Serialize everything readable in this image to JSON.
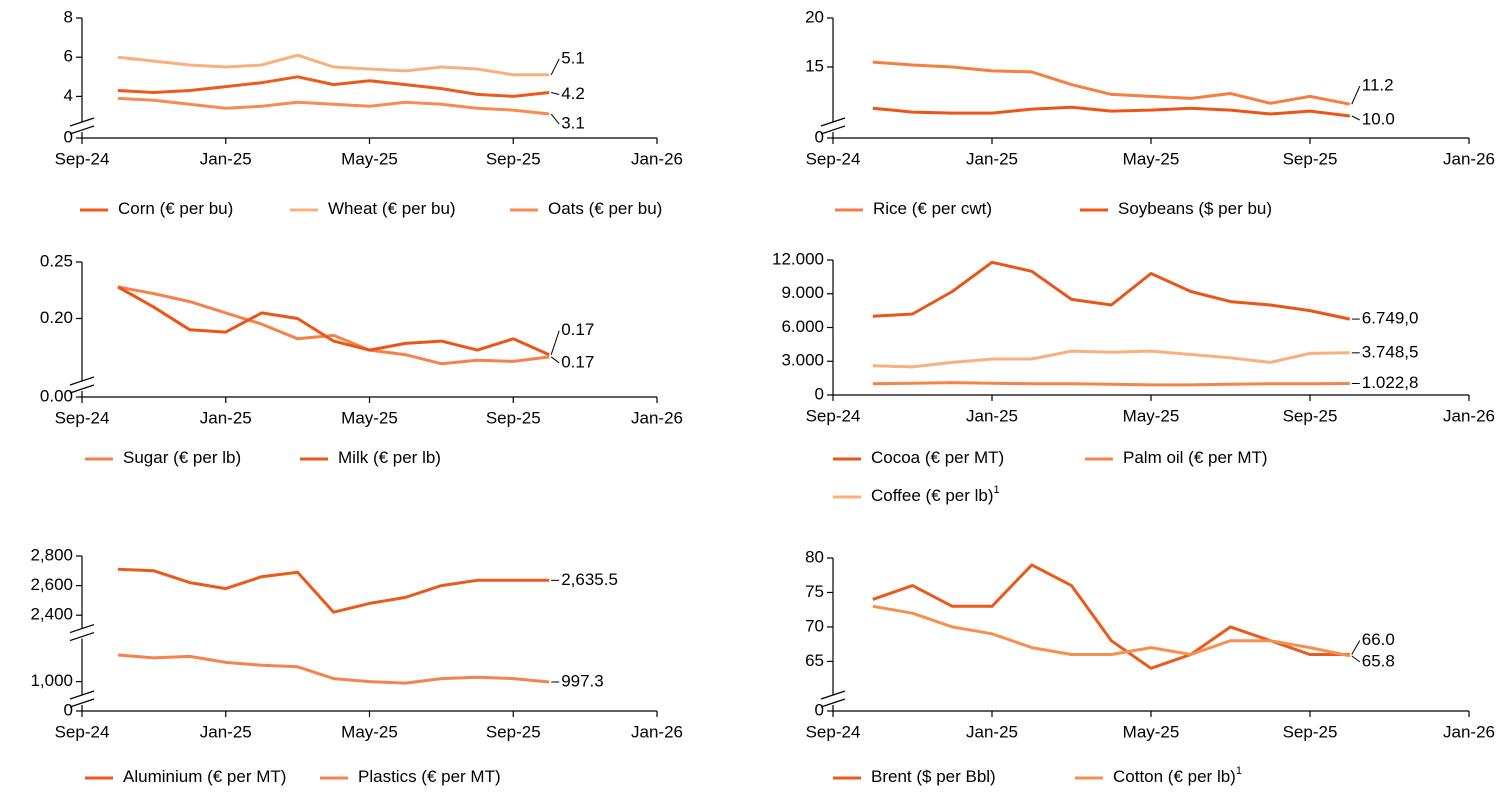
{
  "chart_data": [
    {
      "type": "line",
      "x": [
        "Oct-24",
        "Nov-24",
        "Dec-24",
        "Jan-25",
        "Feb-25",
        "Mar-25",
        "Apr-25",
        "May-25",
        "Jun-25",
        "Jul-25",
        "Aug-25",
        "Sep-25",
        "Oct-25"
      ],
      "xlim": [
        "Sep-24",
        "Jan-26"
      ],
      "xticks": [
        "Sep-24",
        "Jan-25",
        "May-25",
        "Sep-25",
        "Jan-26"
      ],
      "ylim": [
        0,
        8
      ],
      "yticks": [
        0,
        4,
        6,
        8
      ],
      "axis_breaks": [
        [
          0,
          3
        ]
      ],
      "series": [
        {
          "name": "Corn (€ per bu)",
          "color": "#ec5a1c",
          "values": [
            4.3,
            4.2,
            4.3,
            4.5,
            4.7,
            5.0,
            4.6,
            4.8,
            4.6,
            4.4,
            4.1,
            4.0,
            4.2
          ],
          "value_labels": [
            null,
            null,
            null,
            null,
            null,
            null,
            null,
            null,
            null,
            null,
            null,
            null,
            "4.2"
          ]
        },
        {
          "name": "Wheat (€ per bu)",
          "color": "#f8b07c",
          "values": [
            6.0,
            5.8,
            5.6,
            5.5,
            5.6,
            6.1,
            5.5,
            5.4,
            5.3,
            5.5,
            5.4,
            5.1,
            5.1
          ],
          "value_labels": [
            null,
            null,
            null,
            null,
            null,
            null,
            null,
            null,
            null,
            null,
            null,
            null,
            "5.1"
          ]
        },
        {
          "name": "Oats (€ per bu)",
          "color": "#f58c50",
          "values": [
            3.9,
            3.8,
            3.6,
            3.4,
            3.5,
            3.7,
            3.6,
            3.5,
            3.7,
            3.6,
            3.4,
            3.3,
            3.1
          ],
          "value_labels": [
            null,
            null,
            null,
            null,
            null,
            null,
            null,
            null,
            null,
            null,
            null,
            null,
            "3.1"
          ]
        }
      ]
    },
    {
      "type": "line",
      "x": [
        "Oct-24",
        "Nov-24",
        "Dec-24",
        "Jan-25",
        "Feb-25",
        "Mar-25",
        "Apr-25",
        "May-25",
        "Jun-25",
        "Jul-25",
        "Aug-25",
        "Sep-25",
        "Oct-25"
      ],
      "xlim": [
        "Sep-24",
        "Jan-26"
      ],
      "xticks": [
        "Sep-24",
        "Jan-25",
        "May-25",
        "Sep-25",
        "Jan-26"
      ],
      "ylim": [
        0,
        20
      ],
      "yticks": [
        0,
        15,
        20
      ],
      "axis_breaks": [
        [
          0,
          10
        ]
      ],
      "series": [
        {
          "name": "Rice (€ per cwt)",
          "color": "#f57f40",
          "values": [
            15.5,
            15.2,
            15.0,
            14.6,
            14.5,
            13.2,
            12.2,
            12.0,
            11.8,
            12.3,
            11.3,
            12.0,
            11.2
          ],
          "value_labels": [
            null,
            null,
            null,
            null,
            null,
            null,
            null,
            null,
            null,
            null,
            null,
            null,
            "11.2"
          ]
        },
        {
          "name": "Soybeans ($ per bu)",
          "color": "#ec5518",
          "values": [
            10.8,
            10.4,
            10.3,
            10.3,
            10.7,
            10.9,
            10.5,
            10.6,
            10.8,
            10.6,
            10.2,
            10.5,
            10.0
          ],
          "value_labels": [
            null,
            null,
            null,
            null,
            null,
            null,
            null,
            null,
            null,
            null,
            null,
            null,
            "10.0"
          ]
        }
      ]
    },
    {
      "type": "line",
      "x": [
        "Oct-24",
        "Nov-24",
        "Dec-24",
        "Jan-25",
        "Feb-25",
        "Mar-25",
        "Apr-25",
        "May-25",
        "Jun-25",
        "Jul-25",
        "Aug-25",
        "Sep-25",
        "Oct-25"
      ],
      "xlim": [
        "Sep-24",
        "Jan-26"
      ],
      "xticks": [
        "Sep-24",
        "Jan-25",
        "May-25",
        "Sep-25",
        "Jan-26"
      ],
      "ylim": [
        0,
        0.25
      ],
      "yticks": [
        {
          "value": 0,
          "label": "0.00"
        },
        {
          "value": 0.2,
          "label": "0.20"
        },
        0.25
      ],
      "axis_breaks": [
        [
          0,
          0.15
        ]
      ],
      "series": [
        {
          "name": "Sugar (€ per lb)",
          "color": "#f5824a",
          "values": [
            0.228,
            0.222,
            0.215,
            0.205,
            0.195,
            0.182,
            0.185,
            0.172,
            0.168,
            0.16,
            0.163,
            0.162,
            0.166
          ],
          "value_labels": [
            null,
            null,
            null,
            null,
            null,
            null,
            null,
            null,
            null,
            null,
            null,
            null,
            "0.17"
          ]
        },
        {
          "name": "Milk (€ per lb)",
          "color": "#ec5518",
          "values": [
            0.228,
            0.21,
            0.19,
            0.188,
            0.205,
            0.2,
            0.18,
            0.172,
            0.178,
            0.18,
            0.172,
            0.182,
            0.168
          ],
          "value_labels": [
            null,
            null,
            null,
            null,
            null,
            null,
            null,
            null,
            null,
            null,
            null,
            null,
            "0.17"
          ]
        }
      ]
    },
    {
      "type": "line",
      "x": [
        "Oct-24",
        "Nov-24",
        "Dec-24",
        "Jan-25",
        "Feb-25",
        "Mar-25",
        "Apr-25",
        "May-25",
        "Jun-25",
        "Jul-25",
        "Aug-25",
        "Sep-25",
        "Oct-25"
      ],
      "xlim": [
        "Sep-24",
        "Jan-26"
      ],
      "xticks": [
        "Sep-24",
        "Jan-25",
        "May-25",
        "Sep-25",
        "Jan-26"
      ],
      "ylim": [
        0,
        12000
      ],
      "yticks": [
        0,
        {
          "value": 3000,
          "label": "3.000"
        },
        {
          "value": 6000,
          "label": "6.000"
        },
        {
          "value": 9000,
          "label": "9.000"
        },
        {
          "value": 12000,
          "label": "12.000"
        }
      ],
      "axis_breaks": [],
      "series": [
        {
          "name": "Cocoa (€ per MT)",
          "color": "#e9561a",
          "values": [
            7000,
            7200,
            9200,
            11800,
            11000,
            8500,
            8000,
            10800,
            9200,
            8300,
            8000,
            7500,
            6749.0
          ],
          "value_labels": [
            null,
            null,
            null,
            null,
            null,
            null,
            null,
            null,
            null,
            null,
            null,
            null,
            "6.749,0"
          ]
        },
        {
          "name": "Palm oil (€ per MT)",
          "color": "#f58448",
          "values": [
            1000,
            1050,
            1100,
            1050,
            1000,
            1000,
            950,
            900,
            900,
            950,
            1000,
            1000,
            1022.8
          ],
          "value_labels": [
            null,
            null,
            null,
            null,
            null,
            null,
            null,
            null,
            null,
            null,
            null,
            null,
            "1.022,8"
          ]
        },
        {
          "name": "Coffee (€ per lb)",
          "note": "1",
          "color": "#f7b07e",
          "values": [
            2600,
            2500,
            2900,
            3200,
            3200,
            3900,
            3800,
            3900,
            3600,
            3300,
            2900,
            3700,
            3748.5
          ],
          "value_labels": [
            null,
            null,
            null,
            null,
            null,
            null,
            null,
            null,
            null,
            null,
            null,
            null,
            "3.748,5"
          ]
        }
      ]
    },
    {
      "type": "line",
      "x": [
        "Oct-24",
        "Nov-24",
        "Dec-24",
        "Jan-25",
        "Feb-25",
        "Mar-25",
        "Apr-25",
        "May-25",
        "Jun-25",
        "Jul-25",
        "Aug-25",
        "Sep-25",
        "Oct-25"
      ],
      "xlim": [
        "Sep-24",
        "Jan-26"
      ],
      "xticks": [
        "Sep-24",
        "Jan-25",
        "May-25",
        "Sep-25",
        "Jan-26"
      ],
      "ylim": [
        0,
        2800
      ],
      "yticks": [
        0,
        {
          "value": 1000,
          "label": "1,000"
        },
        {
          "value": 2400,
          "label": "2,400"
        },
        {
          "value": 2600,
          "label": "2,600"
        },
        {
          "value": 2800,
          "label": "2,800"
        }
      ],
      "axis_breaks": [
        [
          0,
          950
        ],
        [
          1250,
          2350
        ]
      ],
      "series": [
        {
          "name": "Aluminium (€ per MT)",
          "color": "#ea5a1a",
          "values": [
            2710,
            2700,
            2620,
            2580,
            2660,
            2690,
            2420,
            2480,
            2520,
            2600,
            2635.5,
            2635.5,
            2635.5
          ],
          "value_labels": [
            null,
            null,
            null,
            null,
            null,
            null,
            null,
            null,
            null,
            null,
            null,
            null,
            "2,635.5"
          ]
        },
        {
          "name": "Plastics (€ per MT)",
          "color": "#f5844c",
          "values": [
            1180,
            1160,
            1170,
            1130,
            1110,
            1100,
            1020,
            1000,
            990,
            1020,
            1030,
            1020,
            997.3
          ],
          "value_labels": [
            null,
            null,
            null,
            null,
            null,
            null,
            null,
            null,
            null,
            null,
            null,
            null,
            "997.3"
          ]
        }
      ]
    },
    {
      "type": "line",
      "x": [
        "Oct-24",
        "Nov-24",
        "Dec-24",
        "Jan-25",
        "Feb-25",
        "Mar-25",
        "Apr-25",
        "May-25",
        "Jun-25",
        "Jul-25",
        "Aug-25",
        "Sep-25",
        "Oct-25"
      ],
      "xlim": [
        "Sep-24",
        "Jan-26"
      ],
      "xticks": [
        "Sep-24",
        "Jan-25",
        "May-25",
        "Sep-25",
        "Jan-26"
      ],
      "ylim": [
        0,
        80
      ],
      "yticks": [
        0,
        65,
        70,
        75,
        80
      ],
      "axis_breaks": [
        [
          0,
          61
        ]
      ],
      "series": [
        {
          "name": "Brent ($ per Bbl)",
          "color": "#ea5a1a",
          "values": [
            74,
            76,
            73,
            73,
            79,
            76,
            68,
            64,
            66,
            70,
            68,
            66,
            66.0
          ],
          "value_labels": [
            null,
            null,
            null,
            null,
            null,
            null,
            null,
            null,
            null,
            null,
            null,
            null,
            "66.0"
          ]
        },
        {
          "name": "Cotton (€ per lb)",
          "note": "1",
          "color": "#f5904f",
          "values": [
            73,
            72,
            70,
            69,
            67,
            66,
            66,
            67,
            66,
            68,
            68,
            67,
            65.8
          ],
          "value_labels": [
            null,
            null,
            null,
            null,
            null,
            null,
            null,
            null,
            null,
            null,
            null,
            null,
            "65.8"
          ]
        }
      ]
    }
  ]
}
